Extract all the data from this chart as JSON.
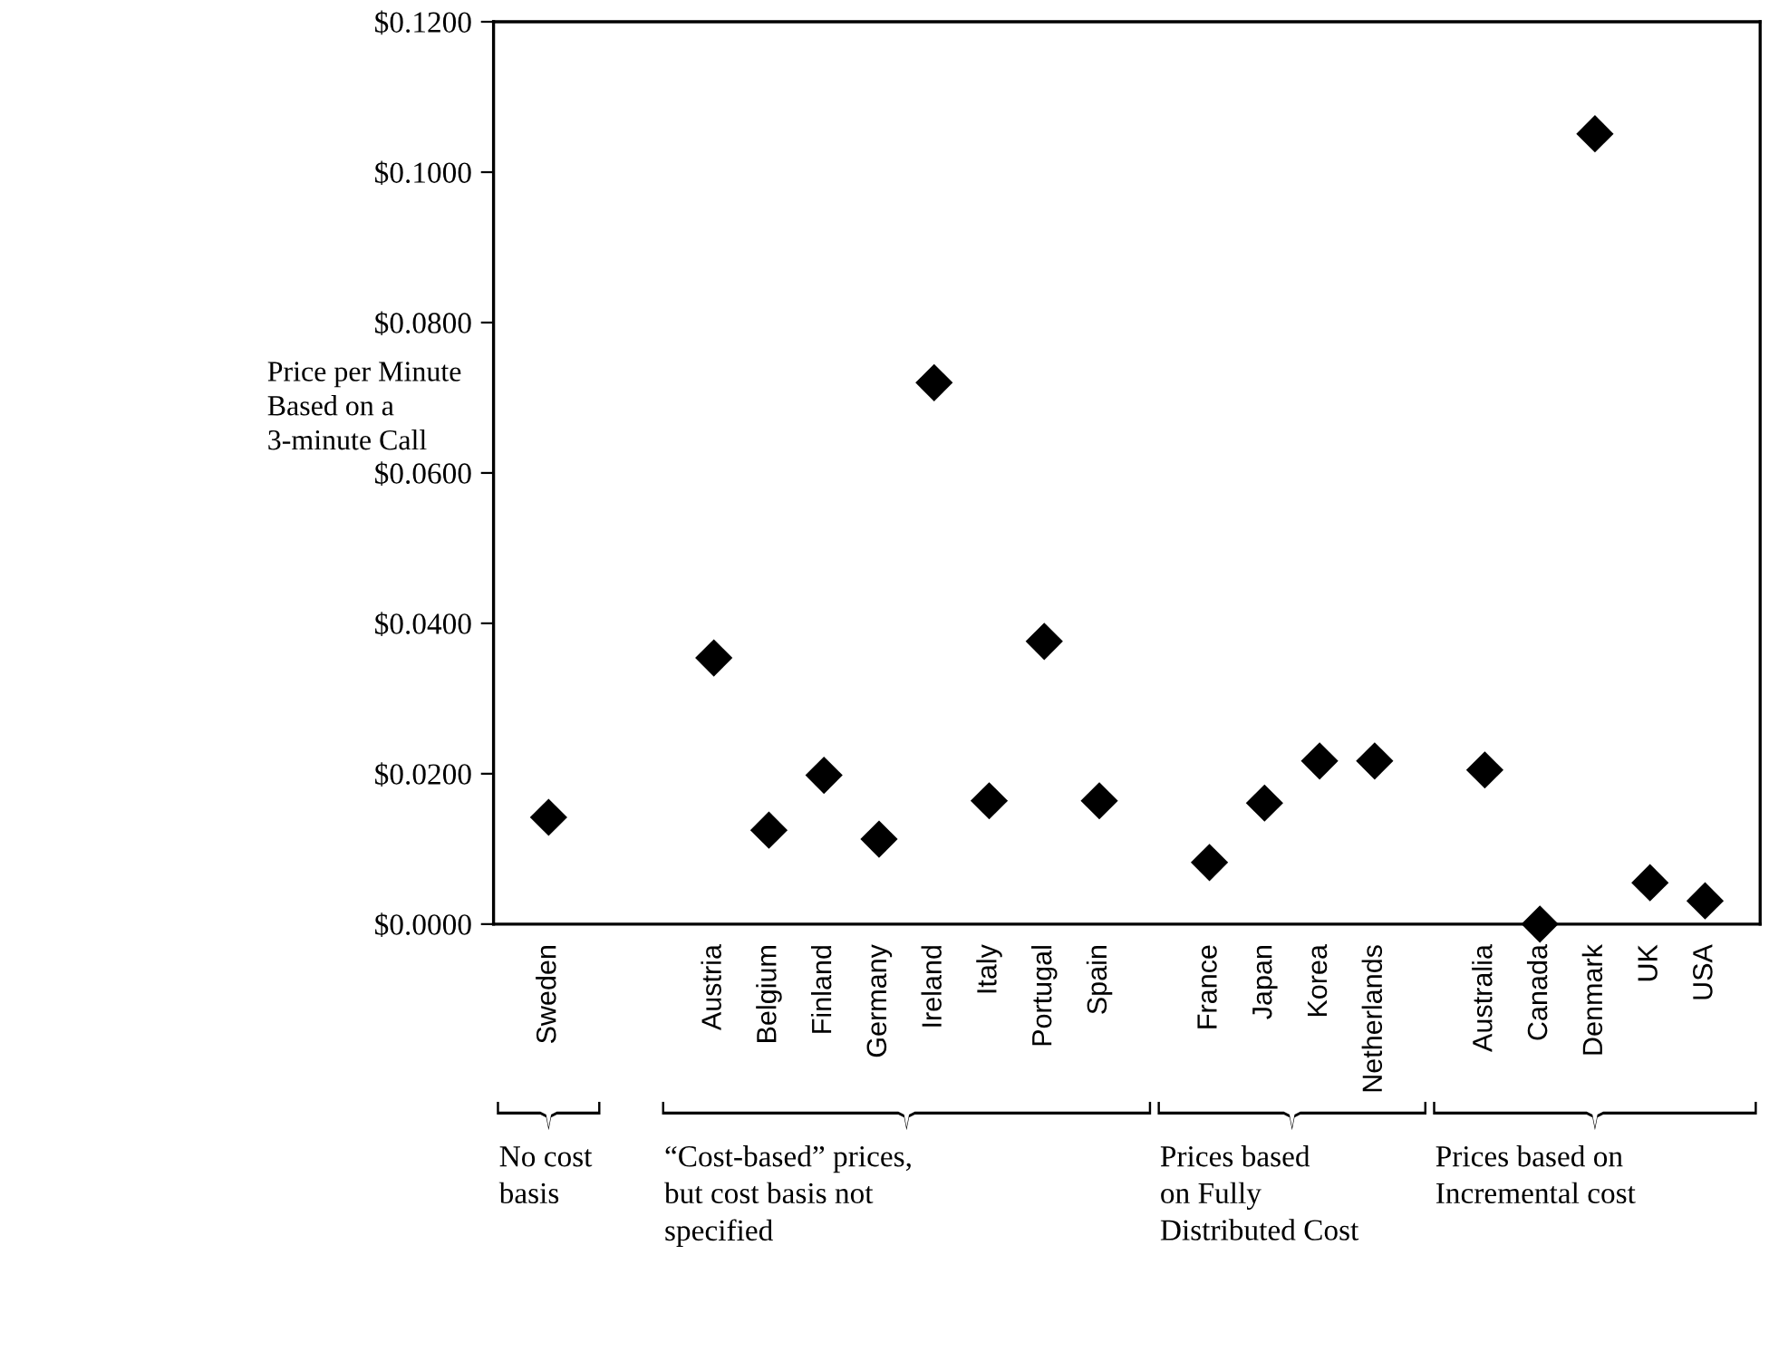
{
  "chart_data": {
    "type": "scatter",
    "ylabel": "Price per Minute\nBased on a\n3-minute Call",
    "categories": [
      "Sweden",
      null,
      null,
      "Austria",
      "Belgium",
      "Finland",
      "Germany",
      "Ireland",
      "Italy",
      "Portugal",
      "Spain",
      null,
      "France",
      "Japan",
      "Korea",
      "Netherlands",
      null,
      "Australia",
      "Canada",
      "Denmark",
      "UK",
      "USA"
    ],
    "series": [
      {
        "color": "#000000",
        "values": [
          0.0142,
          null,
          null,
          0.0354,
          0.0125,
          0.0198,
          0.0113,
          0.072,
          0.0164,
          0.0376,
          0.0164,
          null,
          0.0082,
          0.0161,
          0.0217,
          0.0217,
          null,
          0.0205,
          0.0,
          0.1051,
          0.0055,
          0.0031
        ]
      }
    ],
    "marker": "diamond",
    "ylim": [
      0,
      0.12
    ],
    "yticks": [
      {
        "value": 0,
        "label": "$0.0000"
      },
      {
        "value": 0.02,
        "label": "$0.0200"
      },
      {
        "value": 0.04,
        "label": "$0.0400"
      },
      {
        "value": 0.06,
        "label": "$0.0600"
      },
      {
        "value": 0.08,
        "label": "$0.0800"
      },
      {
        "value": 0.1,
        "label": "$0.1000"
      },
      {
        "value": 0.12,
        "label": "$0.1200"
      }
    ],
    "grid": false,
    "annotations": [
      "No cost\nbasis",
      "“Cost-based” prices,\nbut cost basis not\nspecified",
      "Prices based\non Fully\nDistributed Cost",
      "Prices based on\nIncremental cost"
    ]
  }
}
